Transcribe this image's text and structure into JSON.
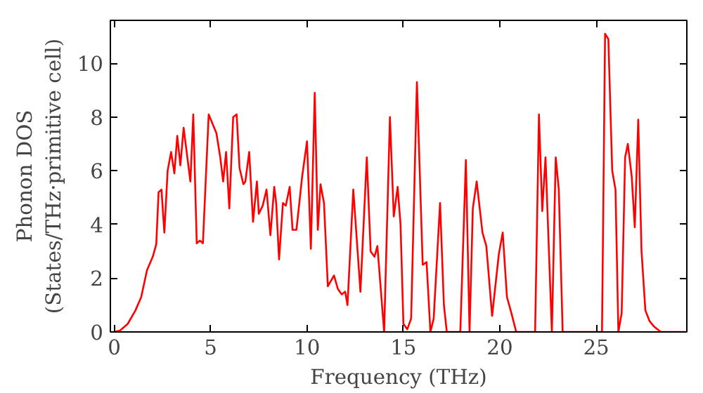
{
  "chart_data": {
    "type": "line",
    "xlabel": "Frequency (THz)",
    "ylabel": "Phonon DOS\n(States/THz·primitive cell)",
    "xlim": [
      -0.2,
      29.7
    ],
    "ylim": [
      0,
      11.6
    ],
    "xticks": [
      0,
      5,
      10,
      15,
      20,
      25
    ],
    "yticks": [
      0,
      2,
      4,
      6,
      8,
      10
    ],
    "grid": false,
    "series": [
      {
        "color": "#ff0000",
        "x": [
          0,
          0.3,
          0.7,
          1.1,
          1.4,
          1.7,
          2.0,
          2.18,
          2.3,
          2.45,
          2.6,
          2.77,
          2.95,
          3.12,
          3.27,
          3.43,
          3.6,
          3.95,
          4.1,
          4.28,
          4.45,
          4.6,
          4.9,
          5.3,
          5.5,
          5.65,
          5.8,
          5.97,
          6.17,
          6.35,
          6.5,
          6.7,
          6.8,
          7.0,
          7.2,
          7.4,
          7.5,
          7.7,
          7.9,
          8.1,
          8.3,
          8.4,
          8.55,
          8.75,
          8.9,
          9.1,
          9.25,
          9.45,
          9.75,
          10.0,
          10.2,
          10.4,
          10.56,
          10.7,
          10.88,
          11.08,
          11.4,
          11.6,
          11.8,
          11.98,
          12.1,
          12.4,
          12.77,
          13.1,
          13.3,
          13.5,
          13.65,
          14.0,
          14.3,
          14.5,
          14.7,
          14.85,
          15.0,
          15.2,
          15.4,
          15.7,
          16.0,
          16.2,
          16.4,
          16.57,
          16.9,
          17.1,
          17.25,
          17.95,
          18.24,
          18.43,
          18.6,
          18.8,
          19.1,
          19.3,
          19.6,
          19.95,
          20.15,
          20.37,
          20.6,
          20.85,
          21.83,
          22.03,
          22.2,
          22.37,
          22.7,
          22.9,
          23.06,
          23.26,
          25.3,
          25.46,
          25.63,
          25.83,
          26.0,
          26.15,
          26.32,
          26.5,
          26.64,
          26.84,
          27.0,
          27.18,
          27.35,
          27.55,
          27.77,
          28.0,
          28.35,
          29.6
        ],
        "values": [
          0,
          0.05,
          0.3,
          0.8,
          1.3,
          2.3,
          2.8,
          3.26,
          5.2,
          5.3,
          3.7,
          6.0,
          6.7,
          5.9,
          7.3,
          6.2,
          7.6,
          5.6,
          8.1,
          3.3,
          3.4,
          3.3,
          8.1,
          7.4,
          6.5,
          5.6,
          6.7,
          4.6,
          8.0,
          8.1,
          6.1,
          5.5,
          5.6,
          6.7,
          4.1,
          5.6,
          4.4,
          4.7,
          5.3,
          3.6,
          5.4,
          4.8,
          2.7,
          4.8,
          4.7,
          5.4,
          3.8,
          3.8,
          5.8,
          7.1,
          3.1,
          8.9,
          3.8,
          5.5,
          4.8,
          1.7,
          2.1,
          1.6,
          1.4,
          1.5,
          1.0,
          5.3,
          1.5,
          6.5,
          3.0,
          2.8,
          3.2,
          0,
          8.0,
          4.3,
          5.4,
          4.0,
          0.3,
          0.1,
          0.5,
          9.3,
          2.5,
          2.6,
          0,
          0.5,
          4.8,
          1.0,
          0,
          0,
          6.4,
          0,
          4.6,
          5.6,
          3.7,
          3.2,
          0.6,
          2.9,
          3.7,
          1.3,
          0.7,
          0,
          0,
          8.1,
          4.5,
          6.5,
          0,
          6.5,
          5.3,
          0,
          0,
          11.1,
          10.9,
          6.0,
          5.3,
          0,
          0.7,
          6.5,
          7.0,
          5.8,
          3.9,
          7.9,
          3.0,
          0.8,
          0.4,
          0.2,
          0,
          0
        ]
      }
    ]
  }
}
